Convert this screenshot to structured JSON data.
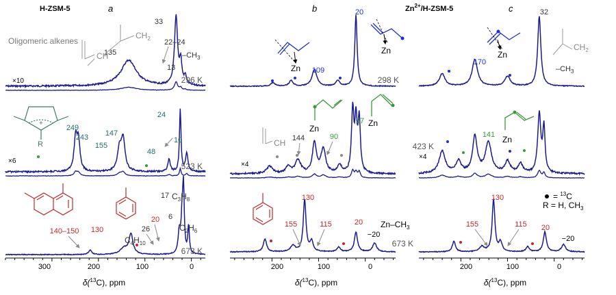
{
  "colors": {
    "spectrum": "#1a1a8c",
    "blue": "#1f2fd0",
    "teal": "#1f6f6a",
    "green": "#3a9a3a",
    "red": "#c0282a",
    "gray": "#7a7a7a"
  },
  "header": {
    "a_sample": "H-ZSM-5",
    "a_letter": "a",
    "b_letter": "b",
    "c_sample_prefix": "Zn",
    "c_sample_sup": "2+",
    "c_sample_suffix": "/H-ZSM-5",
    "c_letter": "c"
  },
  "axis": {
    "label_prefix": "δ(",
    "label_sup": "13",
    "label_suffix": "C), ppm",
    "ticks_a": [
      "300",
      "200",
      "100",
      "0"
    ],
    "ticks_b": [
      "200",
      "100",
      "0"
    ],
    "ticks_c": [
      "200",
      "100",
      "0"
    ]
  },
  "legend": {
    "dot_text": "= ",
    "dot_sup": "13",
    "dot_suffix": "C",
    "r_text": "R = H, CH",
    "r_sub": "3"
  },
  "annotations": {
    "a1": {
      "title": "Oligomeric alkenes",
      "x10": "×10",
      "p135": "135",
      "p33": "33",
      "p2224": "22–24",
      "p13": "13",
      "ch3": "–CH",
      "ch3_sub": "3",
      "ch2": "CH",
      "ch2_sub": "2",
      "ch": "CH",
      "temp": "296 K"
    },
    "a2": {
      "x6": "×6",
      "p249": "249",
      "p243": "243",
      "p155": "155",
      "p147": "147",
      "p48": "48",
      "p24": "24",
      "p10": "10",
      "r": "R",
      "temp": "523 K"
    },
    "a3": {
      "p140150": "140–150",
      "p130": "130",
      "p26": "26",
      "p20": "20",
      "p17": "17",
      "p6": "6",
      "c3h8_a": "C",
      "c3h8_b": "3",
      "c3h8_c": "H",
      "c3h8_d": "8",
      "c2h6_a": "C",
      "c2h6_b": "2",
      "c2h6_c": "H",
      "c2h6_d": "6",
      "c4h10_a": "C",
      "c4h10_b": "4",
      "c4h10_c": "H",
      "c4h10_d": "10",
      "temp": "673 K"
    },
    "b1": {
      "p109": "109",
      "p20": "20",
      "zn1": "Zn",
      "zn2": "Zn",
      "temp": "298 K"
    },
    "b2": {
      "x4": "×4",
      "p144": "144",
      "p90": "90",
      "p27": "27",
      "zn1": "Zn",
      "zn2": "Zn",
      "ch": "CH"
    },
    "b3": {
      "p155": "155",
      "p130": "130",
      "p115": "115",
      "p20": "20",
      "m20": "−20",
      "znch3": "Zn–CH",
      "znch3_sub": "3",
      "temp": "673 K"
    },
    "c1": {
      "p32": "32",
      "p170": "170",
      "zn": "Zn",
      "ch2": "CH",
      "ch2_sub": "2",
      "ch3": "–CH",
      "ch3_sub": "3"
    },
    "c2": {
      "x4": "×4",
      "p141": "141",
      "zn": "Zn",
      "temp": "423 K"
    },
    "c3": {
      "p155": "155",
      "p130": "130",
      "p115": "115",
      "p20": "20",
      "m20": "−20"
    }
  },
  "chart_data": [
    {
      "type": "line",
      "panel": "a",
      "sample": "H-ZSM-5",
      "title": "",
      "xlabel": "δ(13C), ppm",
      "xlim": [
        400,
        -30
      ],
      "x_ticks": [
        300,
        200,
        100,
        0
      ],
      "series": [
        {
          "name": "296 K",
          "peaks": [
            {
              "x": 135,
              "h": 0.38,
              "w": 20
            },
            {
              "x": 33,
              "h": 1.0,
              "w": 4
            },
            {
              "x": 23,
              "h": 0.32,
              "w": 3
            },
            {
              "x": 13,
              "h": 0.12,
              "w": 3
            }
          ],
          "scale_label": "×10"
        },
        {
          "name": "523 K",
          "peaks": [
            {
              "x": 249,
              "h": 0.52,
              "w": 4
            },
            {
              "x": 243,
              "h": 0.45,
              "w": 4
            },
            {
              "x": 155,
              "h": 0.33,
              "w": 5
            },
            {
              "x": 147,
              "h": 0.52,
              "w": 5
            },
            {
              "x": 48,
              "h": 0.2,
              "w": 3
            },
            {
              "x": 24,
              "h": 1.0,
              "w": 2
            },
            {
              "x": 10,
              "h": 0.3,
              "w": 3
            }
          ],
          "scale_label": "×6"
        },
        {
          "name": "673 K",
          "peaks": [
            {
              "x": 218,
              "h": 0.07,
              "w": 4
            },
            {
              "x": 145,
              "h": 0.1,
              "w": 10
            },
            {
              "x": 130,
              "h": 0.32,
              "w": 5
            },
            {
              "x": 26,
              "h": 0.35,
              "w": 3
            },
            {
              "x": 20,
              "h": 0.55,
              "w": 2.5
            },
            {
              "x": 17,
              "h": 1.0,
              "w": 2
            },
            {
              "x": 6,
              "h": 0.45,
              "w": 2
            }
          ]
        }
      ]
    },
    {
      "type": "line",
      "panel": "b",
      "sample": "Zn2+/H-ZSM-5",
      "title": "",
      "xlabel": "δ(13C), ppm",
      "xlim": [
        290,
        -65
      ],
      "x_ticks": [
        200,
        100,
        0
      ],
      "series": [
        {
          "name": "298 K",
          "peaks": [
            {
              "x": 198,
              "h": 0.05,
              "w": 5
            },
            {
              "x": 159,
              "h": 0.08,
              "w": 5
            },
            {
              "x": 109,
              "h": 0.24,
              "w": 6
            },
            {
              "x": 59,
              "h": 0.08,
              "w": 5
            },
            {
              "x": 20,
              "h": 1.0,
              "w": 3
            }
          ]
        },
        {
          "name": "423 K",
          "peaks": [
            {
              "x": 205,
              "h": 0.12,
              "w": 8
            },
            {
              "x": 165,
              "h": 0.12,
              "w": 6
            },
            {
              "x": 144,
              "h": 0.22,
              "w": 7
            },
            {
              "x": 109,
              "h": 0.5,
              "w": 5
            },
            {
              "x": 90,
              "h": 0.4,
              "w": 6
            },
            {
              "x": 55,
              "h": 0.12,
              "w": 6
            },
            {
              "x": 27,
              "h": 1.0,
              "w": 3
            },
            {
              "x": 20,
              "h": 0.8,
              "w": 3
            },
            {
              "x": 13,
              "h": 0.85,
              "w": 3
            }
          ],
          "scale_label": "×4"
        },
        {
          "name": "673 K",
          "peaks": [
            {
              "x": 215,
              "h": 0.25,
              "w": 4
            },
            {
              "x": 155,
              "h": 0.12,
              "w": 6
            },
            {
              "x": 130,
              "h": 1.0,
              "w": 3.5
            },
            {
              "x": 115,
              "h": 0.2,
              "w": 4
            },
            {
              "x": 57,
              "h": 0.09,
              "w": 4
            },
            {
              "x": 20,
              "h": 0.38,
              "w": 4
            },
            {
              "x": -20,
              "h": 0.17,
              "w": 5
            }
          ]
        }
      ]
    },
    {
      "type": "line",
      "panel": "c",
      "sample": "Zn2+/H-ZSM-5",
      "title": "",
      "xlabel": "δ(13C), ppm",
      "xlim": [
        290,
        -65
      ],
      "x_ticks": [
        200,
        100,
        0
      ],
      "series": [
        {
          "name": "298 K",
          "peaks": [
            {
              "x": 240,
              "h": 0.18,
              "w": 7
            },
            {
              "x": 170,
              "h": 0.38,
              "w": 7
            },
            {
              "x": 100,
              "h": 0.14,
              "w": 7
            },
            {
              "x": 32,
              "h": 1.0,
              "w": 4
            }
          ]
        },
        {
          "name": "423 K",
          "peaks": [
            {
              "x": 240,
              "h": 0.38,
              "w": 8
            },
            {
              "x": 205,
              "h": 0.2,
              "w": 7
            },
            {
              "x": 170,
              "h": 0.62,
              "w": 6
            },
            {
              "x": 141,
              "h": 0.52,
              "w": 8
            },
            {
              "x": 100,
              "h": 0.2,
              "w": 7
            },
            {
              "x": 72,
              "h": 0.16,
              "w": 6
            },
            {
              "x": 32,
              "h": 1.0,
              "w": 4
            },
            {
              "x": 22,
              "h": 0.75,
              "w": 3
            }
          ],
          "scale_label": "×4"
        },
        {
          "name": "673 K",
          "peaks": [
            {
              "x": 215,
              "h": 0.2,
              "w": 4
            },
            {
              "x": 155,
              "h": 0.1,
              "w": 6
            },
            {
              "x": 130,
              "h": 1.0,
              "w": 3.5
            },
            {
              "x": 115,
              "h": 0.18,
              "w": 4
            },
            {
              "x": 57,
              "h": 0.1,
              "w": 4
            },
            {
              "x": 20,
              "h": 0.38,
              "w": 4
            },
            {
              "x": -20,
              "h": 0.14,
              "w": 5
            }
          ]
        }
      ]
    }
  ]
}
